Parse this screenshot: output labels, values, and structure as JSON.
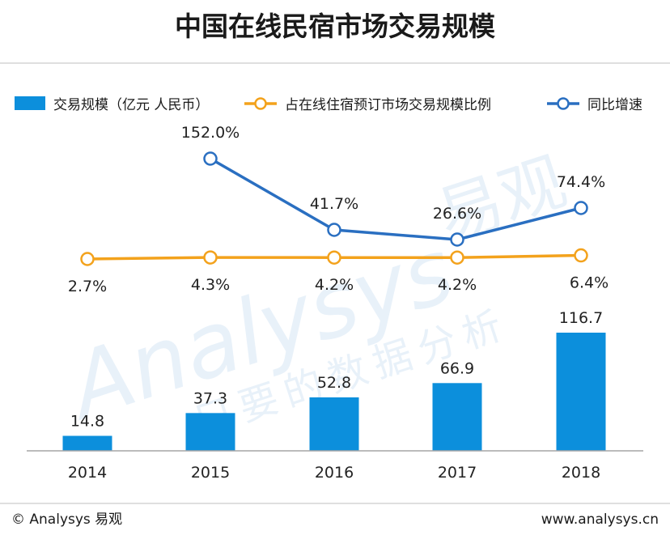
{
  "chart_data": {
    "type": "bar",
    "title": "中国在线民宿市场交易规模",
    "categories": [
      "2014",
      "2015",
      "2016",
      "2017",
      "2018"
    ],
    "series": [
      {
        "name": "交易规模（亿元 人民币）",
        "kind": "bar",
        "color": "#0c8fdc",
        "values": [
          14.8,
          37.3,
          52.8,
          66.9,
          116.7
        ],
        "labels": [
          "14.8",
          "37.3",
          "52.8",
          "66.9",
          "116.7"
        ]
      },
      {
        "name": "占在线住宿预订市场交易规模比例",
        "kind": "line",
        "color": "#f3a21c",
        "values": [
          2.7,
          4.3,
          4.2,
          4.2,
          6.4
        ],
        "labels": [
          "2.7%",
          "4.3%",
          "4.2%",
          "4.2%",
          "6.4%"
        ]
      },
      {
        "name": "同比增速",
        "kind": "line",
        "color": "#2a6fc1",
        "values": [
          null,
          152.0,
          41.7,
          26.6,
          74.4
        ],
        "labels": [
          null,
          "152.0%",
          "41.7%",
          "26.6%",
          "74.4%"
        ]
      }
    ]
  },
  "footer": {
    "left": "© Analysys 易观",
    "right": "www.analysys.cn"
  },
  "watermark": {
    "brand": "Analysys",
    "brand_cn": "易观",
    "slogan": "只要的数据分析"
  }
}
